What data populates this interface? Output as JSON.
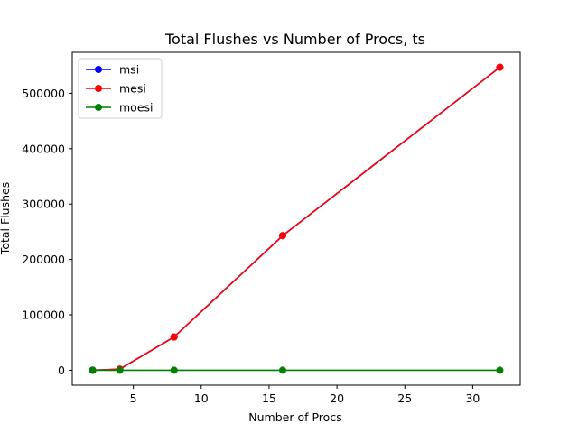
{
  "chart_data": {
    "type": "line",
    "title": "Total Flushes vs Number of Procs, ts",
    "xlabel": "Number of Procs",
    "ylabel": "Total Flushes",
    "x": [
      2,
      4,
      8,
      16,
      32
    ],
    "xlim": [
      0.5,
      33.5
    ],
    "ylim": [
      -27000,
      574000
    ],
    "xticks": [
      5,
      10,
      15,
      20,
      25,
      30
    ],
    "yticks": [
      0,
      100000,
      200000,
      300000,
      400000,
      500000
    ],
    "grid": false,
    "legend_position": "top-left",
    "series": [
      {
        "name": "msi",
        "color": "#0000ff",
        "values": [
          0,
          2000,
          60000,
          243000,
          547000
        ]
      },
      {
        "name": "mesi",
        "color": "#ff0000",
        "values": [
          0,
          2000,
          60000,
          243000,
          547000
        ]
      },
      {
        "name": "moesi",
        "color": "#008000",
        "values": [
          0,
          0,
          0,
          0,
          0
        ]
      }
    ]
  }
}
